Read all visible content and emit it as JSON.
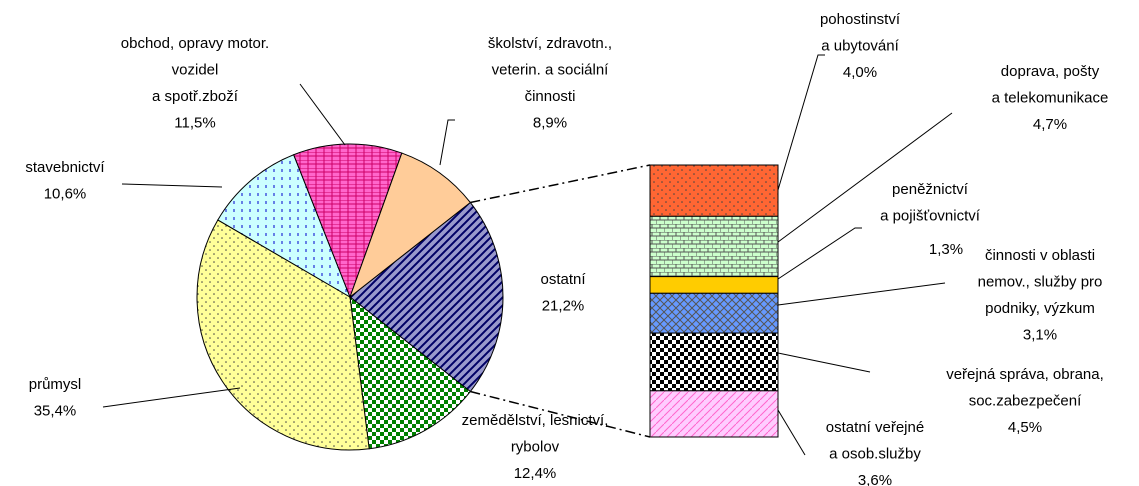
{
  "chart_data": {
    "type": "pie",
    "categories": [
      [
        "ostatní"
      ],
      [
        "zemědělství, lesnictví,",
        "rybolov"
      ],
      [
        "průmysl"
      ],
      [
        "stavebnictví"
      ],
      [
        "obchod, opravy motor.",
        "vozidel",
        "a spotř.zboží"
      ],
      [
        "školství, zdravotn.,",
        "veterin. a sociální",
        "činnosti"
      ]
    ],
    "values": [
      21.2,
      12.4,
      35.4,
      10.6,
      11.5,
      8.9
    ],
    "value_labels": [
      "21,2%",
      "12,4%",
      "35,4%",
      "10,6%",
      "11,5%",
      "8,9%"
    ],
    "colors": [
      "#9999cc",
      "#008000",
      "#ffff99",
      "#ccffff",
      "#ff66cc",
      "#ffcc99"
    ],
    "bar": {
      "categories": [
        [
          "pohostinství",
          "a ubytování"
        ],
        [
          "doprava, pošty",
          "a telekomunikace"
        ],
        [
          "peněžnictví",
          "a pojišťovnictví"
        ],
        [
          "činnosti v oblasti",
          "nemov., služby pro",
          "podniky, výzkum"
        ],
        [
          "veřejná správa, obrana,",
          "soc.zabezpečení"
        ],
        [
          "ostatní veřejné",
          "a osob.služby"
        ]
      ],
      "values": [
        4.0,
        4.7,
        1.3,
        3.1,
        4.5,
        3.6
      ],
      "value_labels": [
        "4,0%",
        "4,7%",
        "1,3%",
        "3,1%",
        "4,5%",
        "3,6%"
      ],
      "colors": [
        "#ff6633",
        "#ccffcc",
        "#ffcc00",
        "#6699ff",
        "#000000",
        "#ffccff"
      ]
    }
  }
}
